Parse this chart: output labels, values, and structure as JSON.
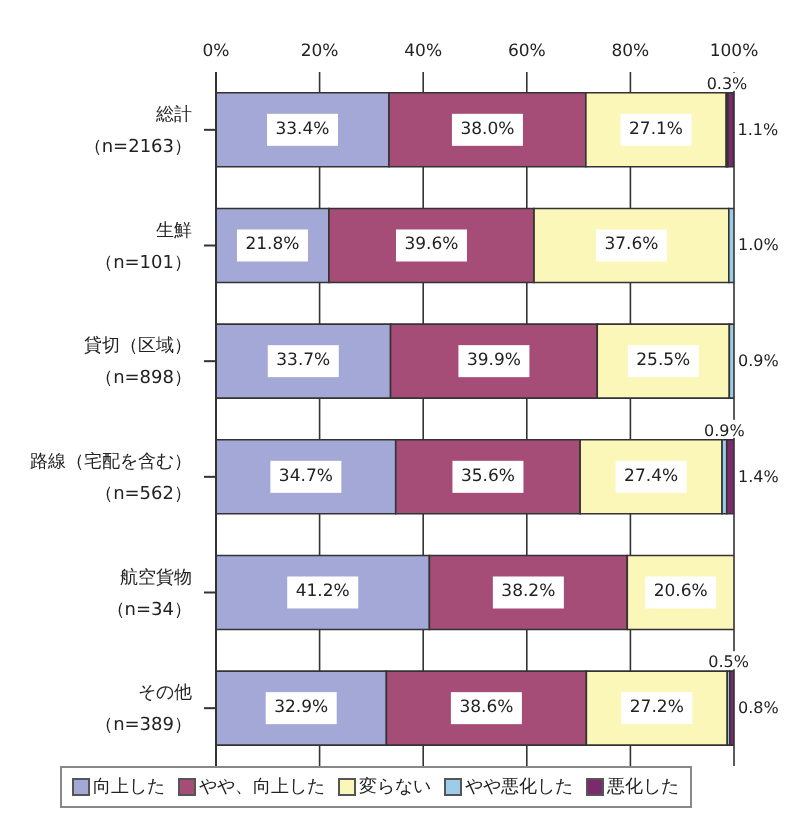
{
  "chart_data": {
    "type": "bar",
    "orientation": "horizontal",
    "stacked": true,
    "categories": [
      "総計（n=2163）",
      "生鮮（n=101）",
      "貸切（区域）（n=898）",
      "路線（宅配を含む）（n=562）",
      "航空貨物（n=34）",
      "その他（n=389）"
    ],
    "series": [
      {
        "name": "向上した",
        "color": "#a3a8d6",
        "values": [
          33.4,
          21.8,
          33.7,
          34.7,
          41.2,
          32.9
        ],
        "value_labels": [
          "33.4%",
          "21.8%",
          "33.7%",
          "34.7%",
          "41.2%",
          "32.9%"
        ]
      },
      {
        "name": "やや、向上した",
        "color": "#a64d77",
        "values": [
          38.0,
          39.6,
          39.9,
          35.6,
          38.2,
          38.6
        ],
        "value_labels": [
          "38.0%",
          "39.6%",
          "39.9%",
          "35.6%",
          "38.2%",
          "38.6%"
        ]
      },
      {
        "name": "変らない",
        "color": "#fbf7b8",
        "values": [
          27.1,
          37.6,
          25.5,
          27.4,
          20.6,
          27.2
        ],
        "value_labels": [
          "27.1%",
          "37.6%",
          "25.5%",
          "27.4%",
          "20.6%",
          "27.2%"
        ]
      },
      {
        "name": "やや悪化した",
        "color": "#9ecbe8",
        "values": [
          0.3,
          1.0,
          0.9,
          0.9,
          null,
          0.5
        ],
        "value_labels": [
          "0.3%",
          "1.0%",
          "0.9%",
          "0.9%",
          null,
          "0.5%"
        ]
      },
      {
        "name": "悪化した",
        "color": "#7b2a6e",
        "values": [
          1.1,
          null,
          null,
          1.4,
          null,
          0.8
        ],
        "value_labels": [
          "1.1%",
          null,
          null,
          "1.4%",
          null,
          "0.8%"
        ]
      }
    ],
    "xlim": [
      0,
      100
    ],
    "xticks": [
      {
        "value": 0,
        "label": "0%"
      },
      {
        "value": 20,
        "label": "20%"
      },
      {
        "value": 40,
        "label": "40%"
      },
      {
        "value": 60,
        "label": "60%"
      },
      {
        "value": 80,
        "label": "80%"
      },
      {
        "value": 100,
        "label": "100%"
      }
    ],
    "grid": "x",
    "legend": "bottom"
  }
}
